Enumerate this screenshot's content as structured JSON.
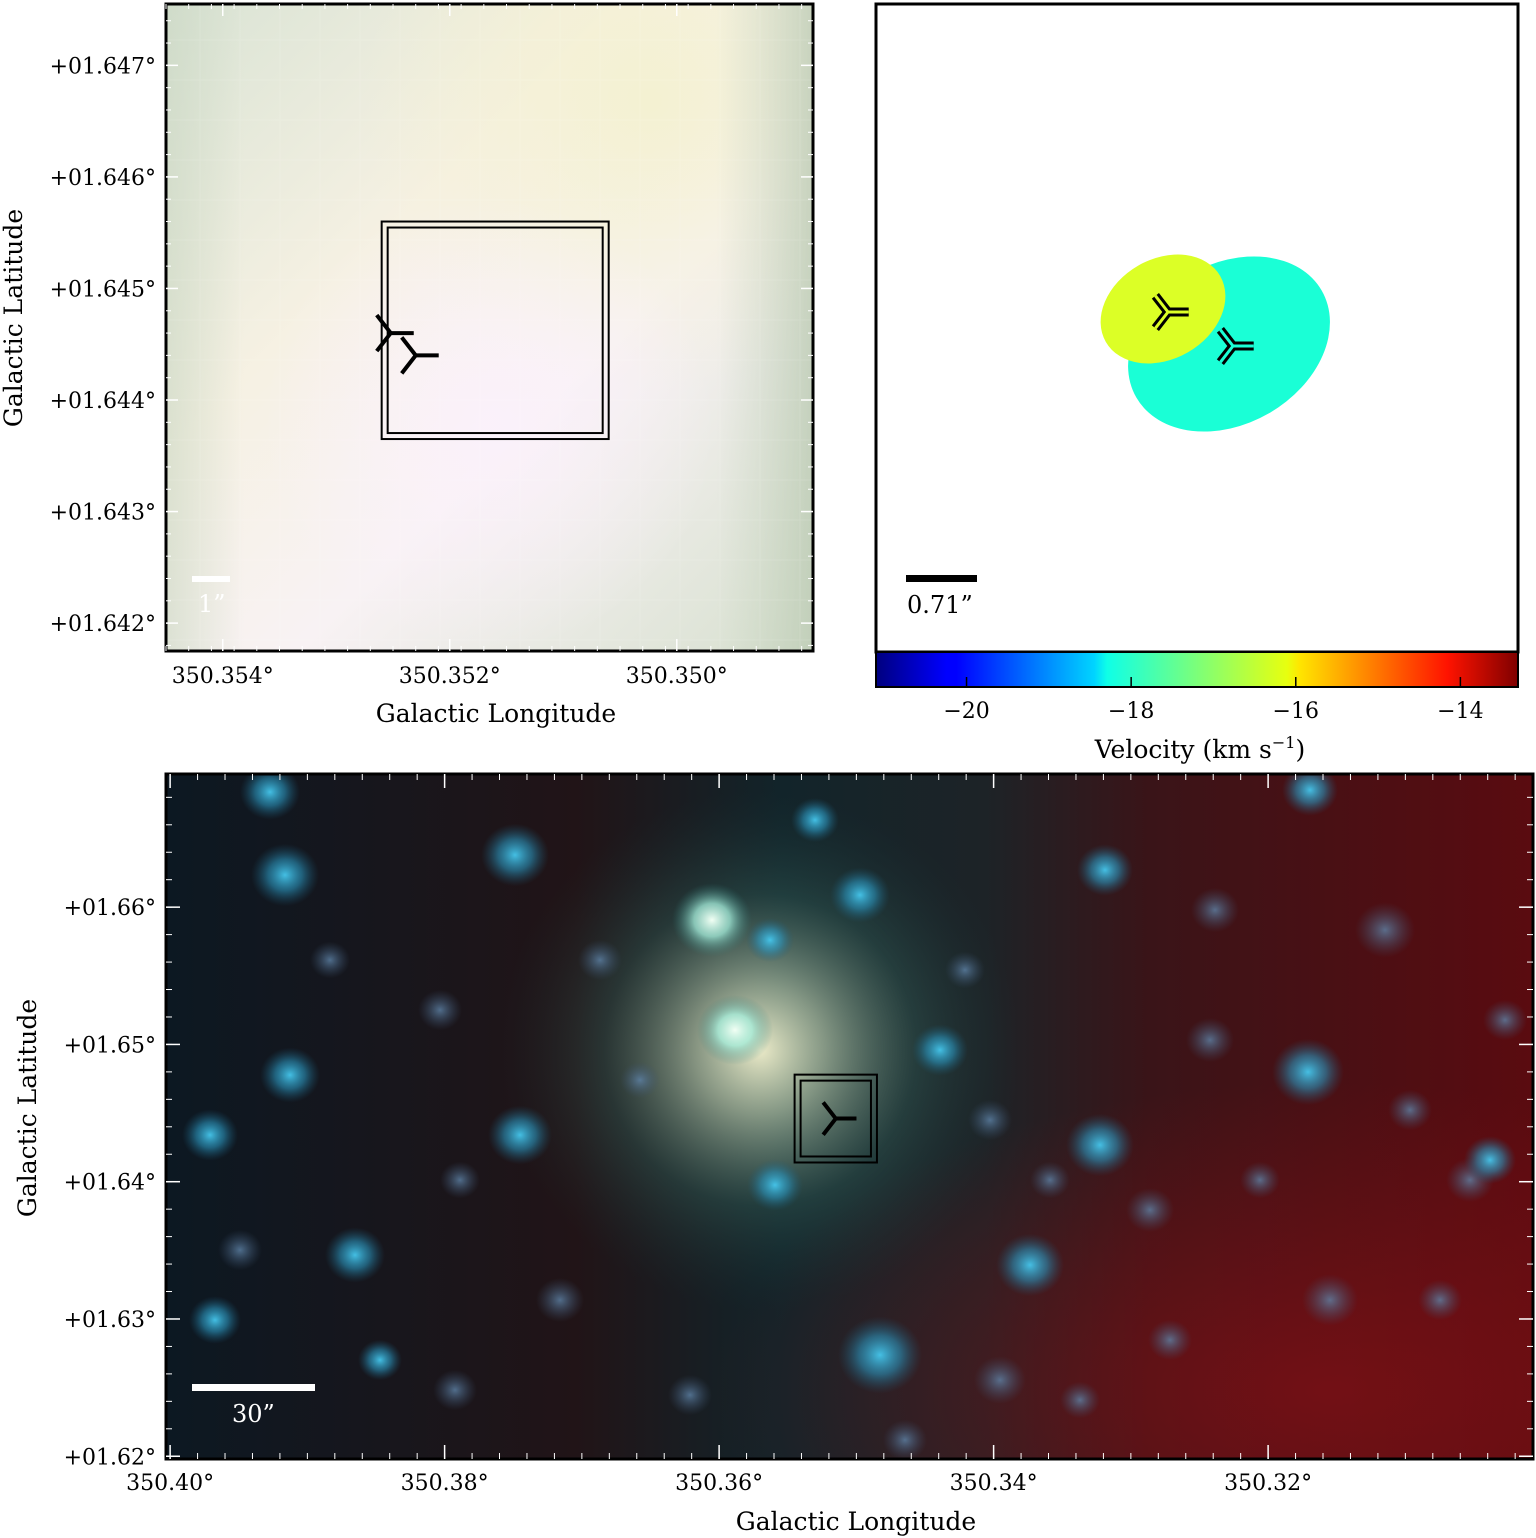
{
  "chart_data": [
    {
      "type": "heatmap",
      "panel": "top-left",
      "xlabel": "Galactic Longitude",
      "ylabel": "Galactic Latitude",
      "x_ticks": [
        "350.354°",
        "350.352°",
        "350.350°"
      ],
      "x_tick_values": [
        350.354,
        350.352,
        350.35
      ],
      "xlim": [
        350.3545,
        350.3488
      ],
      "y_ticks": [
        "+01.647°",
        "+01.646°",
        "+01.645°",
        "+01.644°",
        "+01.643°",
        "+01.642°"
      ],
      "y_tick_values": [
        1.647,
        1.646,
        1.645,
        1.644,
        1.643,
        1.642
      ],
      "ylim": [
        1.64175,
        1.64755
      ],
      "scale_bar": "1”",
      "scale_bar_color": "#ffffff",
      "box": {
        "l": [
          350.3526,
          350.3506
        ],
        "b": [
          1.64365,
          1.6456
        ]
      },
      "markers": [
        {
          "l": 350.35252,
          "b": 1.6446
        },
        {
          "l": 350.3523,
          "b": 1.6444
        }
      ],
      "description_colors": [
        "#dfe7d6",
        "#f8f3e4",
        "#f5f0f4",
        "#cfdcc8"
      ]
    },
    {
      "type": "scatter",
      "panel": "top-right",
      "colorbar": {
        "label": "Velocity (km s",
        "label_superscript": "−1",
        "label_close": ")",
        "ticks": [
          "−20",
          "−18",
          "−16",
          "−14"
        ],
        "tick_values": [
          -20,
          -18,
          -16,
          -14
        ],
        "range": [
          -21.1,
          -13.3
        ],
        "colormap": "jet"
      },
      "scale_bar": "0.71”",
      "scale_bar_color": "#000000",
      "ellipses": [
        {
          "velocity": -16.2,
          "color": "#dcff26"
        },
        {
          "velocity": -17.9,
          "color": "#1affd6"
        }
      ],
      "markers": [
        {
          "velocity": -16.2
        },
        {
          "velocity": -17.9
        }
      ]
    },
    {
      "type": "heatmap",
      "panel": "bottom",
      "xlabel": "Galactic Longitude",
      "ylabel": "Galactic Latitude",
      "x_ticks": [
        "350.40°",
        "350.38°",
        "350.36°",
        "350.34°",
        "350.32°"
      ],
      "x_tick_values": [
        350.4,
        350.38,
        350.36,
        350.34,
        350.32
      ],
      "xlim": [
        350.4003,
        350.3007
      ],
      "y_ticks": [
        "+01.66°",
        "+01.65°",
        "+01.64°",
        "+01.63°",
        "+01.62°"
      ],
      "y_tick_values": [
        1.66,
        1.65,
        1.64,
        1.63,
        1.62
      ],
      "ylim": [
        1.6198,
        1.6697
      ],
      "scale_bar": "30”",
      "scale_bar_color": "#ffffff",
      "box": {
        "l": [
          350.3545,
          350.3485
        ],
        "b": [
          1.6414,
          1.6478
        ]
      },
      "markers": [
        {
          "l": 350.3515,
          "b": 1.6446
        }
      ]
    }
  ]
}
